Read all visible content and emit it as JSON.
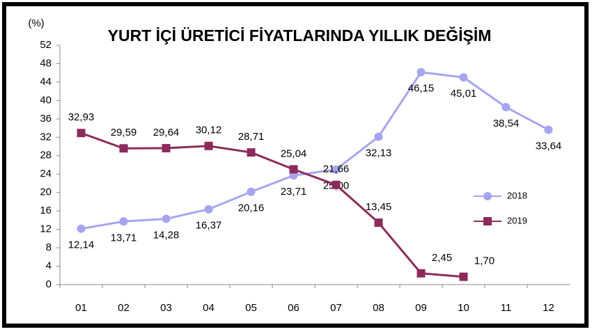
{
  "chart_data": {
    "type": "line",
    "title": "YURT İÇİ ÜRETİCİ FİYATLARINDA YILLIK DEĞİŞİM",
    "y_label": "(%)",
    "categories": [
      "01",
      "02",
      "03",
      "04",
      "05",
      "06",
      "07",
      "08",
      "09",
      "10",
      "11",
      "12"
    ],
    "series": [
      {
        "name": "2018",
        "color": "#a5a5ee",
        "marker": "circle",
        "values": [
          12.14,
          13.71,
          14.28,
          16.37,
          20.16,
          23.71,
          25.0,
          32.13,
          46.15,
          45.01,
          38.54,
          33.64
        ],
        "value_labels": [
          "12,14",
          "13,71",
          "14,28",
          "16,37",
          "20,16",
          "23,71",
          "25,00",
          "32,13",
          "46,15",
          "45,01",
          "38,54",
          "33,64"
        ]
      },
      {
        "name": "2019",
        "color": "#8c2a5c",
        "marker": "square",
        "values": [
          32.93,
          29.59,
          29.64,
          30.12,
          28.71,
          25.04,
          21.66,
          13.45,
          2.45,
          1.7,
          null,
          null
        ],
        "value_labels": [
          "32,93",
          "29,59",
          "29,64",
          "30,12",
          "28,71",
          "25,04",
          "21,66",
          "13,45",
          "2,45",
          "1,70",
          null,
          null
        ]
      }
    ],
    "ylim": [
      0,
      52
    ],
    "yticks": [
      0,
      4,
      8,
      12,
      16,
      20,
      24,
      28,
      32,
      36,
      40,
      44,
      48,
      52
    ],
    "legend": "right"
  }
}
